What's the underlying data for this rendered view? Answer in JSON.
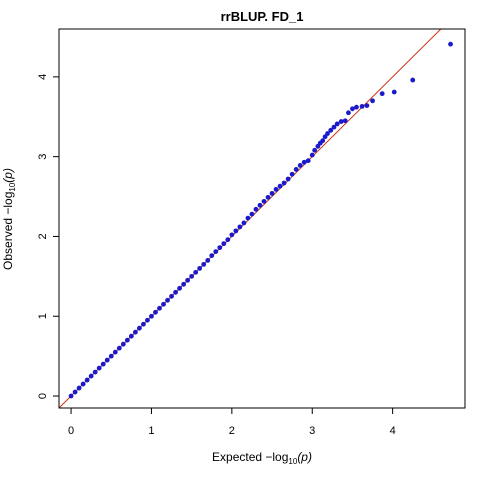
{
  "chart_data": {
    "type": "scatter",
    "title": "rrBLUP. FD_1",
    "xlabel": {
      "prefix": "Expected  −log",
      "sub": "10",
      "suffix": "(p)"
    },
    "ylabel": {
      "prefix": "Observed  −log",
      "sub": "10",
      "suffix": "(p)"
    },
    "xlim": [
      -0.15,
      4.9
    ],
    "ylim": [
      -0.15,
      4.6
    ],
    "xticks": [
      0,
      1,
      2,
      3,
      4
    ],
    "yticks": [
      0,
      1,
      2,
      3,
      4
    ],
    "xtick_labels": [
      "0",
      "1",
      "2",
      "3",
      "4"
    ],
    "ytick_labels": [
      "0",
      "1",
      "2",
      "3",
      "4"
    ],
    "reference_line": {
      "slope": 1,
      "intercept": 0,
      "color": "#cc3311"
    },
    "point_color": "#1a1acc",
    "grid": false,
    "points": [
      [
        0.0,
        0.0
      ],
      [
        0.05,
        0.05
      ],
      [
        0.1,
        0.1
      ],
      [
        0.15,
        0.15
      ],
      [
        0.2,
        0.2
      ],
      [
        0.25,
        0.25
      ],
      [
        0.3,
        0.3
      ],
      [
        0.35,
        0.35
      ],
      [
        0.4,
        0.4
      ],
      [
        0.45,
        0.45
      ],
      [
        0.5,
        0.5
      ],
      [
        0.55,
        0.55
      ],
      [
        0.6,
        0.6
      ],
      [
        0.65,
        0.65
      ],
      [
        0.7,
        0.7
      ],
      [
        0.75,
        0.75
      ],
      [
        0.8,
        0.8
      ],
      [
        0.85,
        0.85
      ],
      [
        0.9,
        0.9
      ],
      [
        0.95,
        0.95
      ],
      [
        1.0,
        1.0
      ],
      [
        1.05,
        1.05
      ],
      [
        1.1,
        1.1
      ],
      [
        1.15,
        1.15
      ],
      [
        1.2,
        1.2
      ],
      [
        1.25,
        1.25
      ],
      [
        1.3,
        1.3
      ],
      [
        1.35,
        1.35
      ],
      [
        1.4,
        1.4
      ],
      [
        1.45,
        1.45
      ],
      [
        1.5,
        1.5
      ],
      [
        1.55,
        1.55
      ],
      [
        1.6,
        1.6
      ],
      [
        1.65,
        1.65
      ],
      [
        1.7,
        1.7
      ],
      [
        1.75,
        1.76
      ],
      [
        1.8,
        1.81
      ],
      [
        1.85,
        1.86
      ],
      [
        1.9,
        1.91
      ],
      [
        1.95,
        1.96
      ],
      [
        2.0,
        2.02
      ],
      [
        2.05,
        2.07
      ],
      [
        2.1,
        2.12
      ],
      [
        2.15,
        2.17
      ],
      [
        2.2,
        2.23
      ],
      [
        2.25,
        2.28
      ],
      [
        2.3,
        2.34
      ],
      [
        2.35,
        2.39
      ],
      [
        2.4,
        2.44
      ],
      [
        2.45,
        2.49
      ],
      [
        2.5,
        2.54
      ],
      [
        2.55,
        2.59
      ],
      [
        2.6,
        2.63
      ],
      [
        2.65,
        2.67
      ],
      [
        2.7,
        2.72
      ],
      [
        2.75,
        2.78
      ],
      [
        2.8,
        2.84
      ],
      [
        2.85,
        2.89
      ],
      [
        2.9,
        2.93
      ],
      [
        2.95,
        2.95
      ],
      [
        3.0,
        3.02
      ],
      [
        3.03,
        3.08
      ],
      [
        3.07,
        3.13
      ],
      [
        3.1,
        3.17
      ],
      [
        3.13,
        3.2
      ],
      [
        3.16,
        3.25
      ],
      [
        3.19,
        3.29
      ],
      [
        3.23,
        3.33
      ],
      [
        3.27,
        3.37
      ],
      [
        3.31,
        3.41
      ],
      [
        3.36,
        3.44
      ],
      [
        3.41,
        3.45
      ],
      [
        3.45,
        3.55
      ],
      [
        3.5,
        3.6
      ],
      [
        3.55,
        3.62
      ],
      [
        3.62,
        3.63
      ],
      [
        3.68,
        3.64
      ],
      [
        3.75,
        3.7
      ],
      [
        3.87,
        3.79
      ],
      [
        4.02,
        3.81
      ],
      [
        4.25,
        3.96
      ],
      [
        4.72,
        4.41
      ]
    ]
  }
}
